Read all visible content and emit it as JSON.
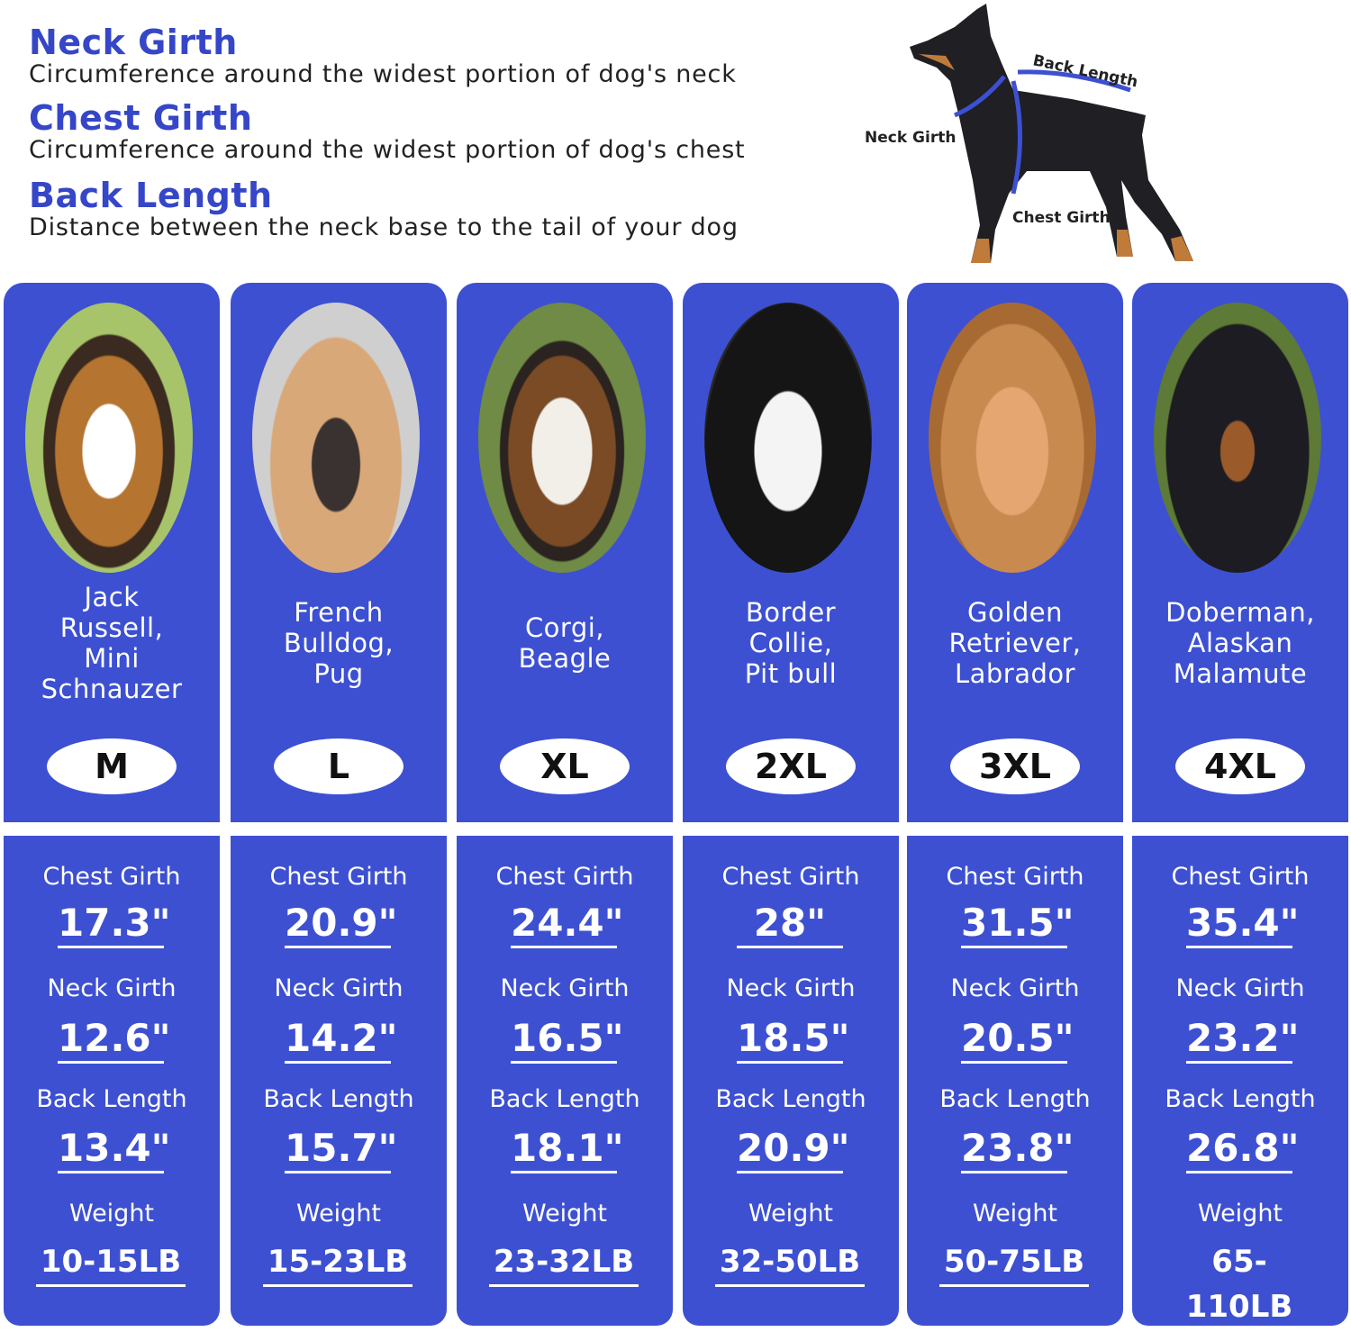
{
  "definitions": [
    {
      "title": "Neck Girth",
      "desc": "Circumference around the widest portion of dog's neck"
    },
    {
      "title": "Chest Girth",
      "desc": "Circumference around the widest portion of dog's chest"
    },
    {
      "title": "Back Length",
      "desc": "Distance between the neck base to the tail of your dog"
    }
  ],
  "diagram": {
    "back_label": "Back Length",
    "neck_label": "Neck Girth",
    "chest_label": "Chest Girth"
  },
  "labels": {
    "chest": "Chest Girth",
    "neck": "Neck Girth",
    "back": "Back Length",
    "weight": "Weight"
  },
  "colors": {
    "panel": "#3d50d2",
    "heading": "#3546c8"
  },
  "sizes": [
    {
      "breeds": "Jack\nRussell,\nMini\nSchnauzer",
      "size": "M",
      "chest": "17.3\"",
      "neck": "12.6\"",
      "back": "13.4\"",
      "weight": "10-15LB"
    },
    {
      "breeds": "French\nBulldog,\nPug",
      "size": "L",
      "chest": "20.9\"",
      "neck": "14.2\"",
      "back": "15.7\"",
      "weight": "15-23LB"
    },
    {
      "breeds": "Corgi,\nBeagle",
      "size": "XL",
      "chest": "24.4\"",
      "neck": "16.5\"",
      "back": "18.1\"",
      "weight": "23-32LB"
    },
    {
      "breeds": "Border\nCollie,\nPit bull",
      "size": "2XL",
      "chest": "28\"",
      "neck": "18.5\"",
      "back": "20.9\"",
      "weight": "32-50LB"
    },
    {
      "breeds": "Golden\nRetriever,\nLabrador",
      "size": "3XL",
      "chest": "31.5\"",
      "neck": "20.5\"",
      "back": "23.8\"",
      "weight": "50-75LB"
    },
    {
      "breeds": "Doberman,\nAlaskan\nMalamute",
      "size": "4XL",
      "chest": "35.4\"",
      "neck": "23.2\"",
      "back": "26.8\"",
      "weight": "65-110LB"
    }
  ]
}
